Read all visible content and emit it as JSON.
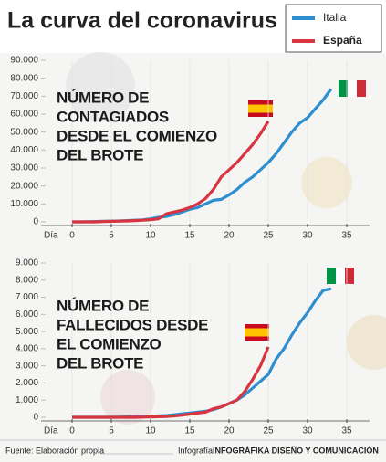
{
  "title": "La curva del coronavirus",
  "footer": {
    "source": "Fuente: Elaboración propia",
    "credit_label": "Infografía:",
    "credit": "INFOGRÁFIKA DISEÑO Y COMUNICACIÓN"
  },
  "chart_data": [
    {
      "type": "line",
      "xlabel": "Día",
      "annotation": [
        "NÚMERO DE",
        "CONTAGIADOS",
        "DESDE EL COMIENZO",
        "DEL BROTE"
      ],
      "x": [
        0,
        1,
        2,
        3,
        4,
        5,
        6,
        7,
        8,
        9,
        10,
        11,
        12,
        13,
        14,
        15,
        16,
        17,
        18,
        19,
        20,
        21,
        22,
        23,
        24,
        25,
        26,
        27,
        28,
        29,
        30,
        31,
        32,
        33
      ],
      "xlim": [
        0,
        35
      ],
      "xticks": [
        0,
        5,
        10,
        15,
        20,
        25,
        30,
        35
      ],
      "ylim": [
        0,
        90000
      ],
      "yticks": [
        0,
        {
          "value": 10000,
          "label": "10.000"
        },
        {
          "value": 20000,
          "label": "20.000"
        },
        {
          "value": 30000,
          "label": "30.000"
        },
        {
          "value": 40000,
          "label": "40.000"
        },
        {
          "value": 50000,
          "label": "50.000"
        },
        {
          "value": 60000,
          "label": "60.000"
        },
        {
          "value": 70000,
          "label": "70.000"
        },
        {
          "value": 80000,
          "label": "80.000"
        },
        {
          "value": 90000,
          "label": "90.000"
        }
      ],
      "series": [
        {
          "name": "Italia",
          "color": "#2e8fcf",
          "values": [
            0,
            0,
            100,
            200,
            300,
            400,
            500,
            700,
            900,
            1100,
            1700,
            2500,
            3000,
            4000,
            5500,
            7000,
            8000,
            10000,
            12000,
            12500,
            15000,
            18000,
            22000,
            25000,
            29000,
            33000,
            38000,
            44000,
            50000,
            55000,
            58000,
            63000,
            68000,
            74000
          ]
        },
        {
          "name": "España",
          "color": "#d8343f",
          "values": [
            0,
            0,
            0,
            0,
            200,
            300,
            400,
            500,
            700,
            900,
            1200,
            1700,
            4500,
            5500,
            6500,
            8000,
            10000,
            13000,
            18000,
            25000,
            29000,
            33000,
            38000,
            43000,
            49000,
            56000,
            null,
            null,
            null,
            null,
            null,
            null,
            null,
            null
          ]
        }
      ]
    },
    {
      "type": "line",
      "xlabel": "Día",
      "annotation": [
        "NÚMERO DE",
        "FALLECIDOS DESDE",
        "EL COMIENZO",
        "DEL BROTE"
      ],
      "x": [
        0,
        1,
        2,
        3,
        4,
        5,
        6,
        7,
        8,
        9,
        10,
        11,
        12,
        13,
        14,
        15,
        16,
        17,
        18,
        19,
        20,
        21,
        22,
        23,
        24,
        25,
        26,
        27,
        28,
        29,
        30,
        31,
        32,
        33
      ],
      "xlim": [
        0,
        35
      ],
      "xticks": [
        0,
        5,
        10,
        15,
        20,
        25,
        30,
        35
      ],
      "ylim": [
        0,
        9000
      ],
      "yticks": [
        0,
        {
          "value": 1000,
          "label": "1.000"
        },
        {
          "value": 2000,
          "label": "2.000"
        },
        {
          "value": 3000,
          "label": "3.000"
        },
        {
          "value": 4000,
          "label": "4.000"
        },
        {
          "value": 5000,
          "label": "5.000"
        },
        {
          "value": 6000,
          "label": "6.000"
        },
        {
          "value": 7000,
          "label": "7.000"
        },
        {
          "value": 8000,
          "label": "8.000"
        },
        {
          "value": 9000,
          "label": "9.000"
        }
      ],
      "series": [
        {
          "name": "Italia",
          "color": "#2e8fcf",
          "values": [
            0,
            0,
            0,
            0,
            0,
            0,
            10,
            20,
            30,
            40,
            50,
            80,
            100,
            150,
            200,
            250,
            300,
            350,
            450,
            600,
            800,
            1000,
            1300,
            1700,
            2100,
            2500,
            3400,
            4000,
            4800,
            5500,
            6100,
            6800,
            7400,
            7500
          ]
        },
        {
          "name": "España",
          "color": "#d8343f",
          "values": [
            0,
            0,
            0,
            0,
            0,
            0,
            0,
            0,
            0,
            10,
            20,
            30,
            50,
            80,
            120,
            180,
            250,
            300,
            500,
            600,
            800,
            1000,
            1500,
            2200,
            3000,
            4100,
            null,
            null,
            null,
            null,
            null,
            null,
            null,
            null
          ]
        }
      ]
    }
  ]
}
